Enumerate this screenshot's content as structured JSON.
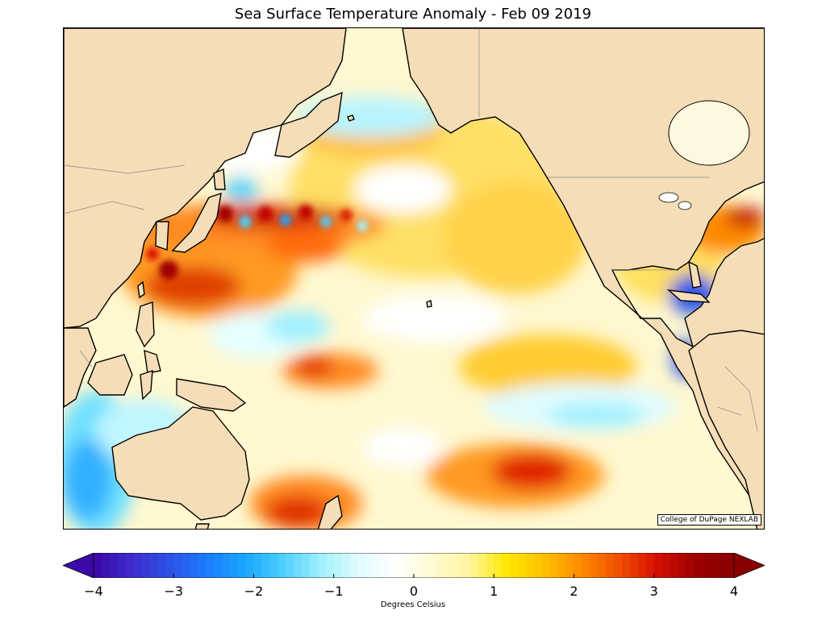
{
  "title": "Sea Surface Temperature Anomaly - Feb 09 2019",
  "credit": "College of DuPage NEXLAB",
  "colorbar": {
    "label": "Degrees Celsius",
    "min": -4,
    "max": 4,
    "ticks": [
      "−4",
      "−3",
      "−2",
      "−1",
      "0",
      "1",
      "2",
      "3",
      "4"
    ],
    "extend": "both",
    "colors": [
      "#3b0aa8",
      "#3e2fd0",
      "#2a55e8",
      "#1a7fff",
      "#1aa8ff",
      "#4fd0ff",
      "#a0f0ff",
      "#e0fcff",
      "#ffffff",
      "#fffbd0",
      "#fff4a0",
      "#ffe800",
      "#ffc000",
      "#ff8a00",
      "#f05000",
      "#d81000",
      "#a00000",
      "#8a0000"
    ]
  },
  "map": {
    "land_color": "#f5ddb7",
    "region": "North Pacific",
    "date": "Feb 09 2019"
  }
}
